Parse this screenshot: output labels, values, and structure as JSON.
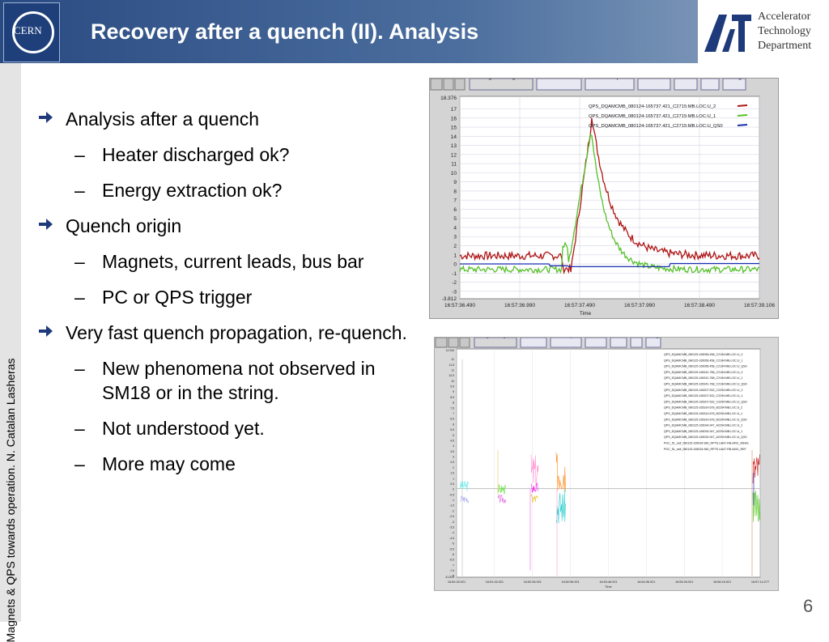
{
  "header": {
    "title": "Recovery after a quench (II). Analysis",
    "cern_logo_text": "CERN",
    "department_lines": [
      "Accelerator",
      "Technology",
      "Department"
    ]
  },
  "side_text": "Magnets & QPS towards operation. N. Catalan Lasheras",
  "bullets": [
    {
      "level": 1,
      "text": "Analysis after a quench"
    },
    {
      "level": 2,
      "text": "Heater discharged ok?"
    },
    {
      "level": 2,
      "text": "Energy extraction ok?"
    },
    {
      "level": 1,
      "text": "Quench origin"
    },
    {
      "level": 2,
      "text": "Magnets, current leads, bus bar"
    },
    {
      "level": 2,
      "text": "PC or QPS trigger"
    },
    {
      "level": 1,
      "text": "Very fast quench propagation, re-quench."
    },
    {
      "level": 2,
      "text": "New phenomena not observed in SM18 or in the string."
    },
    {
      "level": 2,
      "text": "Not understood yet."
    },
    {
      "level": 2,
      "text": "More may come"
    }
  ],
  "screenshot1": {
    "toolbar": [
      "Legend at right",
      "Default Scale",
      "Screen Capture",
      "Scale ±10",
      "Deriv.",
      "FFT",
      "Y Log"
    ],
    "ymax_label": "18.376",
    "ymin_label": "-3.812",
    "yticks": [
      "17",
      "16",
      "15",
      "14",
      "13",
      "12",
      "11",
      "10",
      "9",
      "8",
      "7",
      "6",
      "5",
      "4",
      "3",
      "2",
      "1",
      "0",
      "-1",
      "-2",
      "-3"
    ],
    "xticks": [
      "16:57:36.490",
      "16:57:36.990",
      "16:57:37.490",
      "16:57:37.990",
      "16:57:38.490",
      "16:57:39.106"
    ],
    "xlabel": "Time",
    "legend": [
      {
        "name": "QPS_DQAMCMB_080124-165737.421_C2715:MB.LOC:U_2",
        "color": "#b01414"
      },
      {
        "name": "QPS_DQAMCMB_080124-165737.421_C2715:MB.LOC:U_1",
        "color": "#55c02a"
      },
      {
        "name": "QPS_DQAMCMB_080124-165737.421_C2715:MB.LOC:U_QS0",
        "color": "#1a2fb0"
      }
    ]
  },
  "screenshot2": {
    "toolbar": [
      "Legend at right",
      "Default Scale",
      "Screen Capture",
      "Scale ±10",
      "Deriv.",
      "FFT",
      "Y Log"
    ],
    "ymax_label": "12.940",
    "ymin_label": "-8.1321",
    "yticks": [
      "12",
      "11.5",
      "11",
      "10.5",
      "10",
      "9.5",
      "9",
      "8.5",
      "8",
      "7.5",
      "7",
      "6.5",
      "6",
      "5.5",
      "5",
      "4.5",
      "4",
      "3.5",
      "3",
      "2.5",
      "2",
      "1.5",
      "1",
      "0.5",
      "0",
      "-0.5",
      "-1",
      "-1.5",
      "-2",
      "-2.5",
      "-3",
      "-3.5",
      "-4",
      "-4.5",
      "-5",
      "-5.5",
      "-6",
      "-6.5",
      "-7",
      "-7.5",
      "-8"
    ],
    "xticks": [
      "16:50:26.921",
      "16:51:16.921",
      "16:52:06.921",
      "16:52:56.921",
      "16:53:46.921",
      "16:54:36.921",
      "16:55:26.921",
      "16:56:16.921",
      "16:57:14.277"
    ],
    "xlabel": "Time",
    "legend": [
      "QPS_DQAMCMB_080125-165056.458_C2194:MB.LOC:U_2",
      "QPS_DQAMCMB_080125-165056.458_C2194:MB.LOC:U_1",
      "QPS_DQAMCMB_080125-165056.458_C2194:MB.LOC:U_QS0",
      "QPS_DQAMCMB_080125-165241.768_C2194:MB.LOC:U_2",
      "QPS_DQAMCMB_080125-165241.768_C2194:MB.LOC:U_1",
      "QPS_DQAMCMB_080125-165241.768_C2194:MB.LOC:U_QS0",
      "QPS_DQAMCMB_080125-165207.532_C2294:MB.LOC:U_2",
      "QPS_DQAMCMB_080125-165207.532_C2294:MB.LOC:U_1",
      "QPS_DQAMCMB_080125-165207.532_C2294:MB.LOC:U_QS0",
      "QPS_DQAMCMB_080125-165314.678_B2294:MB.LOC:U_2",
      "QPS_DQAMCMB_080125-165314.678_B2294:MB.LOC:U_1",
      "QPS_DQAMCMB_080125-165314.678_B2294:MB.LOC:U_QS0",
      "QPS_DQAMCMB_080125-165034.947_A2294:MB.LOC:U_2",
      "QPS_DQAMCMB_080125-165034.947_A2294:MB.LOC:U_1",
      "QPS_DQAMCMB_080125-165034.947_A2294:MB.LOC:U_QS0",
      "PGC_51_self_080125-165034.960_RPTE.UA47.RB.A451_MEAS",
      "PGC_51_self_080125-165034.960_RPTE.UA47.RB.A451_REF"
    ]
  },
  "page_number": "6"
}
